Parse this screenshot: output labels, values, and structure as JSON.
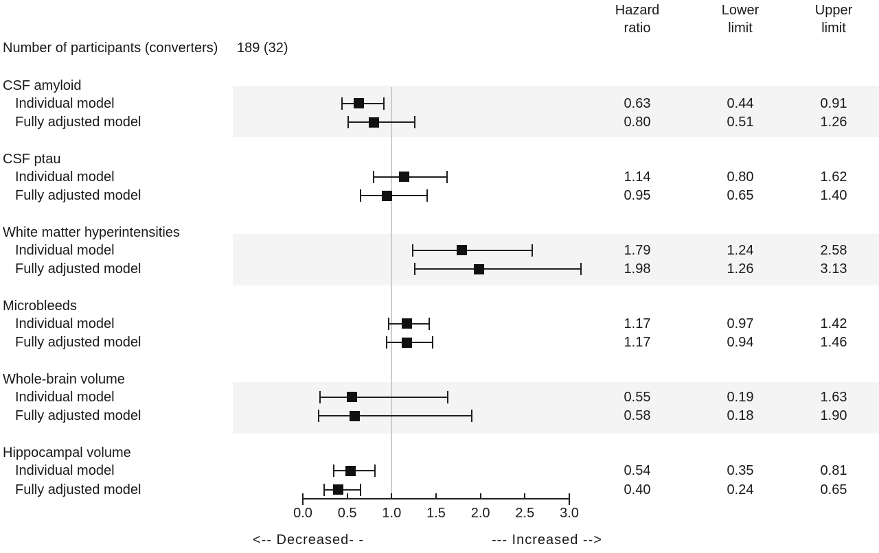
{
  "header": {
    "columns": [
      {
        "top": "Hazard",
        "bottom": "ratio"
      },
      {
        "top": "Lower",
        "bottom": "limit"
      },
      {
        "top": "Upper",
        "bottom": "limit"
      }
    ]
  },
  "participants": {
    "label": "Number of participants (converters)",
    "value": "189 (32)"
  },
  "axis_annotations": {
    "decreased": "<-- Decreased- -",
    "increased": "--- Increased -->"
  },
  "chart_data": {
    "type": "forest",
    "title": "",
    "value_columns": [
      "Hazard ratio",
      "Lower limit",
      "Upper limit"
    ],
    "x_axis": {
      "tick_labels": [
        "0.0",
        "0.5",
        "1.0",
        "1.5",
        "2.0",
        "2.5",
        "3.0"
      ],
      "min": 0.0,
      "max": 3.0,
      "reference_line": 1.0
    },
    "direction_labels": {
      "left": "Decreased",
      "right": "Increased"
    },
    "groups": [
      {
        "name": "CSF amyloid",
        "shaded": true,
        "rows": [
          {
            "model": "Individual model",
            "hazard_ratio": 0.63,
            "lower_limit": 0.44,
            "upper_limit": 0.91
          },
          {
            "model": "Fully adjusted model",
            "hazard_ratio": 0.8,
            "lower_limit": 0.51,
            "upper_limit": 1.26
          }
        ]
      },
      {
        "name": "CSF ptau",
        "shaded": false,
        "rows": [
          {
            "model": "Individual model",
            "hazard_ratio": 1.14,
            "lower_limit": 0.8,
            "upper_limit": 1.62
          },
          {
            "model": "Fully adjusted model",
            "hazard_ratio": 0.95,
            "lower_limit": 0.65,
            "upper_limit": 1.4
          }
        ]
      },
      {
        "name": "White matter hyperintensities",
        "shaded": true,
        "rows": [
          {
            "model": "Individual model",
            "hazard_ratio": 1.79,
            "lower_limit": 1.24,
            "upper_limit": 2.58
          },
          {
            "model": "Fully adjusted model",
            "hazard_ratio": 1.98,
            "lower_limit": 1.26,
            "upper_limit": 3.13
          }
        ]
      },
      {
        "name": "Microbleeds",
        "shaded": false,
        "rows": [
          {
            "model": "Individual model",
            "hazard_ratio": 1.17,
            "lower_limit": 0.97,
            "upper_limit": 1.42
          },
          {
            "model": "Fully adjusted model",
            "hazard_ratio": 1.17,
            "lower_limit": 0.94,
            "upper_limit": 1.46
          }
        ]
      },
      {
        "name": "Whole-brain volume",
        "shaded": true,
        "rows": [
          {
            "model": "Individual model",
            "hazard_ratio": 0.55,
            "lower_limit": 0.19,
            "upper_limit": 1.63
          },
          {
            "model": "Fully adjusted model",
            "hazard_ratio": 0.58,
            "lower_limit": 0.18,
            "upper_limit": 1.9
          }
        ]
      },
      {
        "name": "Hippocampal volume",
        "shaded": false,
        "rows": [
          {
            "model": "Individual model",
            "hazard_ratio": 0.54,
            "lower_limit": 0.35,
            "upper_limit": 0.81
          },
          {
            "model": "Fully adjusted model",
            "hazard_ratio": 0.4,
            "lower_limit": 0.24,
            "upper_limit": 0.65
          }
        ]
      }
    ],
    "colors": {
      "band": "#f4f4f4",
      "marker": "#111111",
      "line": "#1f1f1f",
      "reference_line": "#cccccc",
      "text": "#1a1a1a",
      "background": "#ffffff"
    }
  }
}
